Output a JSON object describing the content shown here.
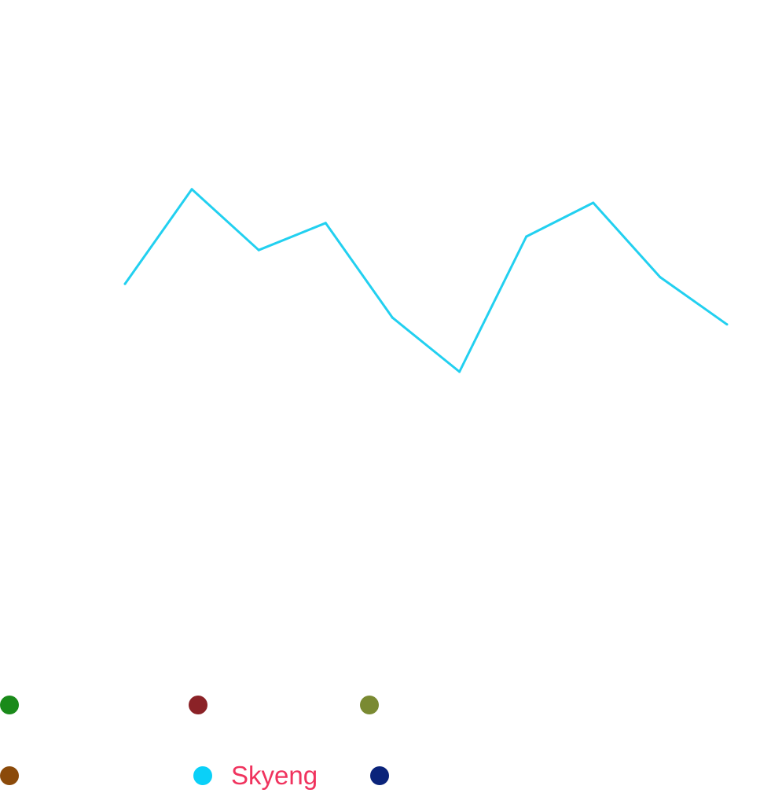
{
  "chart_data": {
    "type": "line",
    "title": "",
    "xlabel": "",
    "ylabel": "",
    "x": [
      1,
      2,
      3,
      4,
      5,
      6,
      7,
      8,
      9,
      10
    ],
    "ylim": [
      0,
      100
    ],
    "grid": false,
    "legend_placement": "bottom",
    "series": [
      {
        "name": "Skyeng",
        "color": "#22d0f0",
        "values": [
          58,
          72,
          63,
          67,
          53,
          45,
          65,
          70,
          59,
          52
        ]
      }
    ],
    "legend": [
      {
        "label": "",
        "color": "#1a8a1a"
      },
      {
        "label": "",
        "color": "#8b2227"
      },
      {
        "label": "",
        "color": "#7a8a32"
      },
      {
        "label": "",
        "color": "#8b4a0a"
      },
      {
        "label": "Skyeng",
        "color": "#0ad0f8",
        "label_color": "#f0335e"
      },
      {
        "label": "",
        "color": "#0a237a"
      }
    ]
  }
}
